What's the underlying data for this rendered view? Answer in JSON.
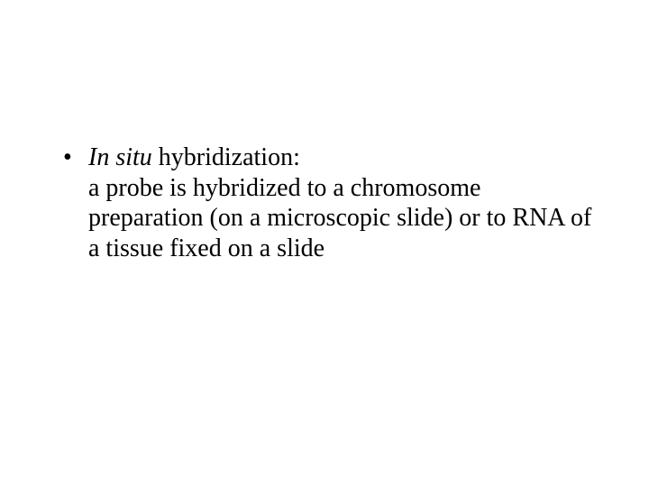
{
  "slide": {
    "background_color": "#ffffff",
    "text_color": "#000000",
    "font_family": "Times New Roman",
    "font_size_pt": 28,
    "bullet": {
      "marker": "•",
      "term_italic": "In situ",
      "term_rest": " hybridization:",
      "definition": "a probe is hybridized to a chromosome preparation (on a microscopic slide) or to RNA of a tissue fixed on a slide"
    }
  }
}
